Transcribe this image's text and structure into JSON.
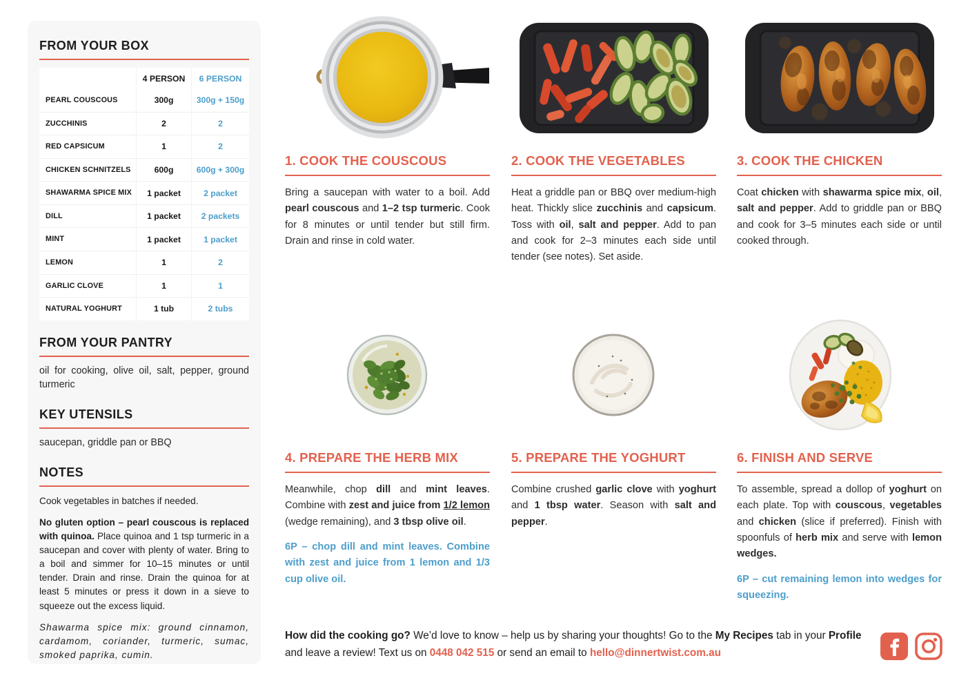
{
  "colors": {
    "accent": "#E2614E",
    "blue": "#4D9ECB",
    "sidebar_bg": "#F7F7F7"
  },
  "sidebar": {
    "box_title": "FROM YOUR BOX",
    "table": {
      "header_4p": "4 PERSON",
      "header_6p": "6 PERSON",
      "rows": [
        {
          "name": "PEARL COUSCOUS",
          "p4": "300g",
          "p6": "300g + 150g"
        },
        {
          "name": "ZUCCHINIS",
          "p4": "2",
          "p6": "2"
        },
        {
          "name": "RED CAPSICUM",
          "p4": "1",
          "p6": "2"
        },
        {
          "name": "CHICKEN SCHNITZELS",
          "p4": "600g",
          "p6": "600g + 300g"
        },
        {
          "name": "SHAWARMA SPICE MIX",
          "p4": "1 packet",
          "p6": "2 packet"
        },
        {
          "name": "DILL",
          "p4": "1 packet",
          "p6": "2 packets"
        },
        {
          "name": "MINT",
          "p4": "1 packet",
          "p6": "1 packet"
        },
        {
          "name": "LEMON",
          "p4": "1",
          "p6": "2"
        },
        {
          "name": "GARLIC CLOVE",
          "p4": "1",
          "p6": "1"
        },
        {
          "name": "NATURAL YOGHURT",
          "p4": "1 tub",
          "p6": "2 tubs"
        }
      ]
    },
    "pantry_title": "FROM YOUR PANTRY",
    "pantry_text": "oil for cooking, olive oil, salt, pepper, ground turmeric",
    "utensils_title": "KEY UTENSILS",
    "utensils_text": "saucepan, griddle pan or BBQ",
    "notes_title": "NOTES",
    "notes": [
      [
        {
          "t": "Cook vegetables in batches if needed."
        }
      ],
      [
        {
          "t": "No gluten option – pearl couscous is replaced with quinoa.",
          "b": true
        },
        {
          "t": " Place quinoa and 1 tsp turmeric in a saucepan and cover with plenty of water. Bring to a boil and simmer for 10–15 minutes or until tender. Drain and rinse. Drain the quinoa for at least 5 minutes or press it down in a sieve to squeeze out the excess liquid."
        }
      ],
      [
        {
          "t": "Shawarma spice mix: ground cinnamon, cardamom, coriander, turmeric, sumac, smoked paprika, cumin.",
          "i": true
        }
      ]
    ]
  },
  "steps": [
    {
      "title": "1. COOK THE COUSCOUS",
      "photo": "saucepan-with-turmeric-couscous",
      "body": [
        {
          "t": "Bring a saucepan with water to a boil. Add "
        },
        {
          "t": "pearl couscous",
          "b": true
        },
        {
          "t": " and "
        },
        {
          "t": "1–2 tsp turmeric",
          "b": true
        },
        {
          "t": ". Cook for 8 minutes or until tender but still firm. Drain and rinse in cold water."
        }
      ]
    },
    {
      "title": "2. COOK THE VEGETABLES",
      "photo": "griddle-pan-with-capsicum-and-zucchini",
      "body": [
        {
          "t": "Heat a griddle pan or BBQ over medium-high heat. Thickly slice "
        },
        {
          "t": "zucchinis",
          "b": true
        },
        {
          "t": " and "
        },
        {
          "t": "capsicum",
          "b": true
        },
        {
          "t": ". Toss with "
        },
        {
          "t": "oil",
          "b": true
        },
        {
          "t": ", "
        },
        {
          "t": "salt and pepper",
          "b": true
        },
        {
          "t": ". Add to pan and cook for 2–3 minutes each side until tender (see notes). Set aside."
        }
      ]
    },
    {
      "title": "3. COOK THE CHICKEN",
      "photo": "griddle-pan-with-chicken-schnitzels",
      "body": [
        {
          "t": "Coat "
        },
        {
          "t": "chicken",
          "b": true
        },
        {
          "t": " with "
        },
        {
          "t": "shawarma spice mix",
          "b": true
        },
        {
          "t": ", "
        },
        {
          "t": "oil",
          "b": true
        },
        {
          "t": ", "
        },
        {
          "t": "salt and pepper",
          "b": true
        },
        {
          "t": ". Add to griddle pan or BBQ and cook for 3–5 minutes each side or until cooked through."
        }
      ]
    },
    {
      "title": "4. PREPARE THE HERB MIX",
      "photo": "glass-bowl-with-herb-mix",
      "body": [
        {
          "t": "Meanwhile, chop "
        },
        {
          "t": "dill",
          "b": true
        },
        {
          "t": " and "
        },
        {
          "t": "mint leaves",
          "b": true
        },
        {
          "t": ". Combine with "
        },
        {
          "t": "zest and juice from ",
          "b": true
        },
        {
          "t": "1/2 lemon",
          "b": true,
          "u": true
        },
        {
          "t": " (wedge remaining), and "
        },
        {
          "t": "3 tbsp olive oil",
          "b": true
        },
        {
          "t": "."
        }
      ],
      "note_6p": "6P – chop dill and mint leaves. Combine with zest and juice from 1 lemon and 1/3 cup olive oil."
    },
    {
      "title": "5. PREPARE THE YOGHURT",
      "photo": "bowl-with-yoghurt",
      "body": [
        {
          "t": "Combine crushed "
        },
        {
          "t": "garlic clove",
          "b": true
        },
        {
          "t": " with "
        },
        {
          "t": "yoghurt",
          "b": true
        },
        {
          "t": " and "
        },
        {
          "t": "1 tbsp water",
          "b": true
        },
        {
          "t": ". Season with "
        },
        {
          "t": "salt and pepper",
          "b": true
        },
        {
          "t": "."
        }
      ]
    },
    {
      "title": "6. FINISH AND SERVE",
      "photo": "plated-finished-dish",
      "body": [
        {
          "t": "To assemble, spread a dollop of "
        },
        {
          "t": "yoghurt",
          "b": true
        },
        {
          "t": " on each plate. Top with "
        },
        {
          "t": "couscous",
          "b": true
        },
        {
          "t": ", "
        },
        {
          "t": "vegetables",
          "b": true
        },
        {
          "t": " and "
        },
        {
          "t": "chicken",
          "b": true
        },
        {
          "t": " (slice if preferred). Finish with spoonfuls of "
        },
        {
          "t": "herb mix",
          "b": true
        },
        {
          "t": " and serve with "
        },
        {
          "t": "lemon wedges.",
          "b": true
        }
      ],
      "note_6p": "6P – cut remaining lemon into wedges for squeezing."
    }
  ],
  "footer": {
    "text": [
      {
        "t": "How did the cooking go?",
        "b": true
      },
      {
        "t": " We’d love to know – help us by sharing your thoughts! Go to the "
      },
      {
        "t": "My Recipes",
        "b": true
      },
      {
        "t": " tab in your "
      },
      {
        "t": "Profile",
        "b": true
      },
      {
        "t": " and leave a review! Text us on "
      },
      {
        "t": "0448 042 515",
        "b": true,
        "c": "accent",
        "n": "phone-link"
      },
      {
        "t": " or send an email to "
      },
      {
        "t": "hello@dinnertwist.com.au",
        "b": true,
        "c": "accent",
        "n": "email-link"
      }
    ],
    "social": [
      "facebook-icon",
      "instagram-icon"
    ]
  }
}
